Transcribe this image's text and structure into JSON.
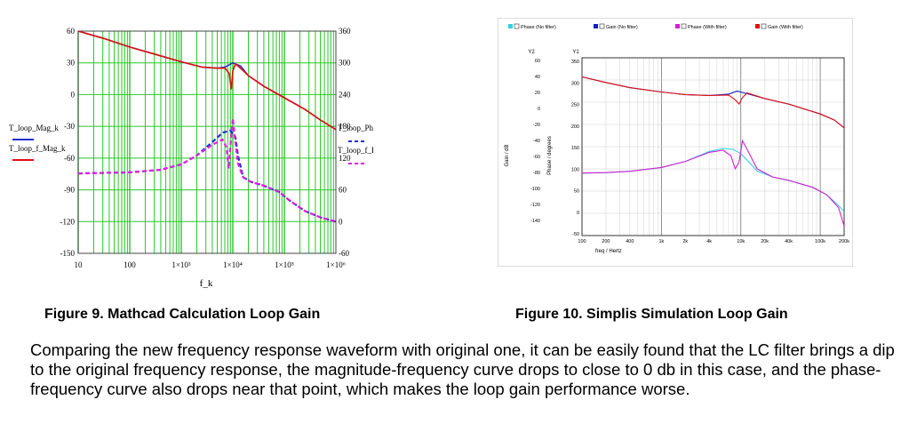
{
  "figure9": {
    "caption": "Figure 9. Mathcad Calculation Loop Gain",
    "left_ticks": [
      "60",
      "30",
      "0",
      "-30",
      "-60",
      "-90",
      "-120",
      "-150"
    ],
    "right_ticks": [
      "360",
      "300",
      "240",
      "180",
      "120",
      "60",
      "0",
      "-60"
    ],
    "x_ticks": [
      "10",
      "100",
      "1×10³",
      "1×10⁴",
      "1×10⁵",
      "1×10⁶"
    ],
    "xlabel": "f_k",
    "legend_left": [
      "T_loop_Mag_k",
      "T_loop_f_Mag_k"
    ],
    "legend_right": [
      "T_loop_Phase_k",
      "T_loop_f_Phase_k"
    ],
    "colors": {
      "mag": "#2030d0",
      "mag_f": "#e01010",
      "phase": "#2030d0",
      "phase_f": "#e020e0",
      "grid": "#28c828"
    }
  },
  "figure10": {
    "caption": "Figure 10. Simplis Simulation Loop Gain",
    "legend": [
      "Phase (No filter)",
      "Gain (No filter)",
      "Phase (With filter)",
      "Gain (With filter)"
    ],
    "legend_colors": [
      "#30d0e0",
      "#1020c0",
      "#d020d0",
      "#e01010"
    ],
    "y2_label": "Y2",
    "y1_label": "Y1",
    "y2_ticks": [
      "60",
      "40",
      "20",
      "0",
      "-20",
      "-40",
      "-60",
      "-80",
      "-100",
      "-120",
      "-140"
    ],
    "y1_ticks": [
      "350",
      "300",
      "250",
      "200",
      "150",
      "100",
      "50",
      "0",
      "-50"
    ],
    "x_ticks": [
      "100",
      "200",
      "400",
      "1k",
      "2k",
      "4k",
      "10k",
      "20k",
      "40k",
      "100k",
      "200k"
    ],
    "ylabel_gain": "Gain / dB",
    "ylabel_phase": "Phase / degrees",
    "xlabel": "freq / Hertz"
  },
  "paragraph": "Comparing the new frequency response waveform with original one, it can be easily found that the LC filter brings a dip to the original frequency response, the magnitude-frequency curve drops to close to 0 db in this case, and the phase-frequency curve also drops near that point, which makes the loop gain performance worse."
}
